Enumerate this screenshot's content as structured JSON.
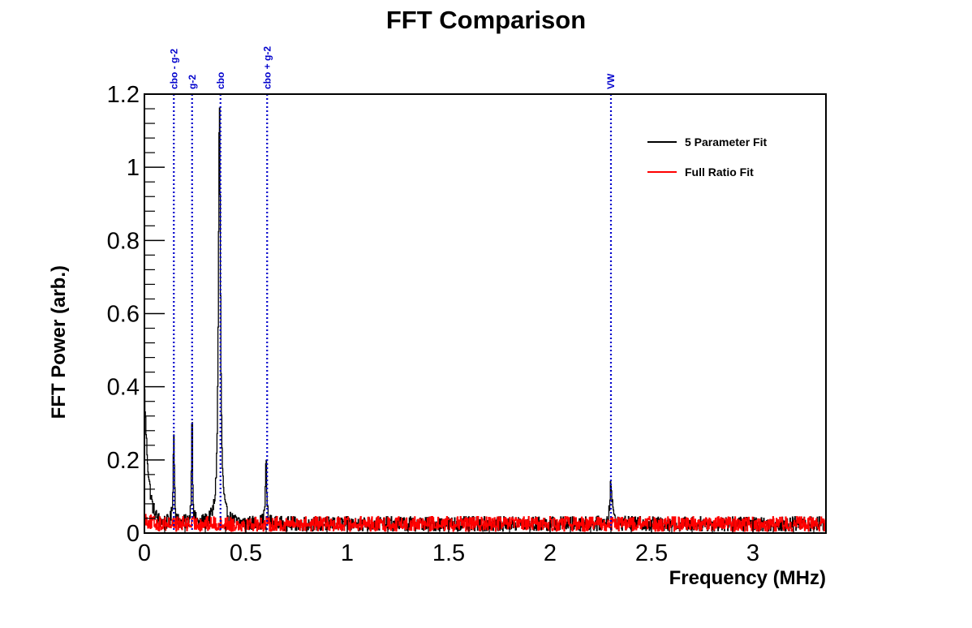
{
  "chart_data": {
    "type": "line",
    "title": "FFT Comparison",
    "xlabel": "Frequency (MHz)",
    "ylabel": "FFT Power (arb.)",
    "xlim": [
      0,
      3.36
    ],
    "ylim": [
      0,
      1.2
    ],
    "x_ticks": [
      0,
      0.5,
      1,
      1.5,
      2,
      2.5,
      3
    ],
    "x_tick_labels": [
      "0",
      "0.5",
      "1",
      "1.5",
      "2",
      "2.5",
      "3"
    ],
    "y_ticks": [
      0,
      0.2,
      0.4,
      0.6,
      0.8,
      1,
      1.2
    ],
    "y_tick_labels": [
      "0",
      "0.2",
      "0.4",
      "0.6",
      "0.8",
      "1",
      "1.2"
    ],
    "grid": false,
    "legend_position": "top-right",
    "series": [
      {
        "name": "5 Parameter Fit",
        "color": "#000000",
        "baseline": 0.025,
        "noise": 0.02,
        "low_freq_decay": {
          "amplitude": 0.38,
          "scale": 0.02
        },
        "peaks": [
          {
            "x": 0.145,
            "height": 0.24,
            "width": 0.004
          },
          {
            "x": 0.235,
            "height": 0.32,
            "width": 0.003
          },
          {
            "x": 0.37,
            "height": 1.15,
            "width": 0.006
          },
          {
            "x": 0.6,
            "height": 0.17,
            "width": 0.004
          },
          {
            "x": 2.3,
            "height": 0.11,
            "width": 0.007
          }
        ]
      },
      {
        "name": "Full Ratio Fit",
        "color": "#ff0000",
        "baseline": 0.025,
        "noise": 0.02,
        "low_freq_decay": {
          "amplitude": 0.02,
          "scale": 0.02
        },
        "peaks": []
      }
    ],
    "markers": [
      {
        "label": "cbo - g-2",
        "x": 0.145,
        "color": "#0000cc"
      },
      {
        "label": "g-2",
        "x": 0.235,
        "color": "#0000cc"
      },
      {
        "label": "cbo",
        "x": 0.375,
        "color": "#0000cc"
      },
      {
        "label": "cbo + g-2",
        "x": 0.605,
        "color": "#0000cc"
      },
      {
        "label": "VW",
        "x": 2.3,
        "color": "#0000cc"
      }
    ]
  }
}
